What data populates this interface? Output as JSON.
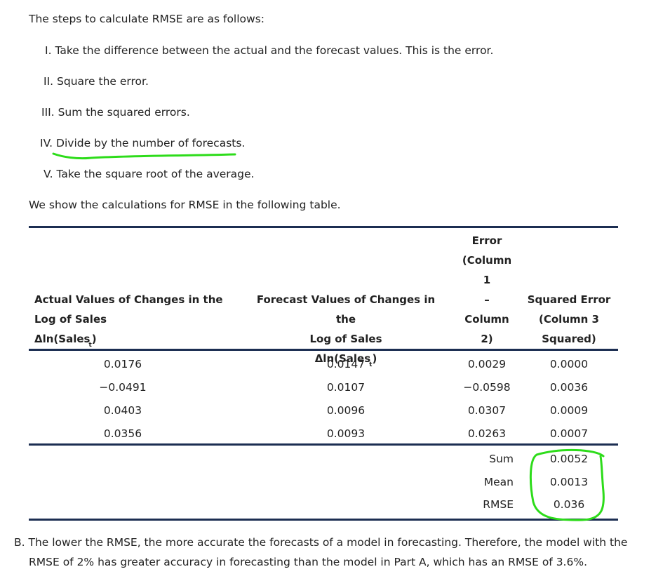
{
  "intro": "The steps to calculate RMSE are as follows:",
  "steps": [
    {
      "num": "I.",
      "text": "Take the difference between the actual and the forecast values. This is the error."
    },
    {
      "num": "II.",
      "text": "Square the error."
    },
    {
      "num": "III.",
      "text": "Sum the squared errors."
    },
    {
      "num": "IV.",
      "text": "Divide by the number of forecasts."
    },
    {
      "num": "V.",
      "text": "Take the square root of the average."
    }
  ],
  "table_intro": "We show the calculations for RMSE in the following table.",
  "table": {
    "headers": {
      "col1": {
        "line1": "Actual Values of Changes in the",
        "line2": "Log of Sales",
        "line3": "Δln(Sales",
        "sub": "t",
        "close": ")"
      },
      "col2": {
        "line1": "Forecast Values of Changes in the",
        "line2": "Log of Sales",
        "line3": "Δln(Sales",
        "sub": "t",
        "close": ")"
      },
      "col3": {
        "line1": "Error",
        "line2": "(Column",
        "line3": "1",
        "line4": "–",
        "line5": "Column",
        "line6": "2)"
      },
      "col4": {
        "line1": "Squared Error",
        "line2": "(Column 3",
        "line3": "Squared)"
      }
    },
    "rows": [
      [
        "0.0176",
        "0.0147",
        "0.0029",
        "0.0000"
      ],
      [
        "−0.0491",
        "0.0107",
        "−0.0598",
        "0.0036"
      ],
      [
        "0.0403",
        "0.0096",
        "0.0307",
        "0.0009"
      ],
      [
        "0.0356",
        "0.0093",
        "0.0263",
        "0.0007"
      ]
    ],
    "summary": [
      {
        "label": "Sum",
        "value": "0.0052"
      },
      {
        "label": "Mean",
        "value": "0.0013"
      },
      {
        "label": "RMSE",
        "value": "0.036"
      }
    ]
  },
  "conclusion": {
    "marker": "B.",
    "line1": "The lower the RMSE, the more accurate the forecasts of a model in forecasting. Therefore, the model with the",
    "line2": "RMSE of 2% has greater accuracy in forecasting than the model in Part A, which has an RMSE of 3.6%."
  },
  "annotation_color": "#2ddc1a"
}
